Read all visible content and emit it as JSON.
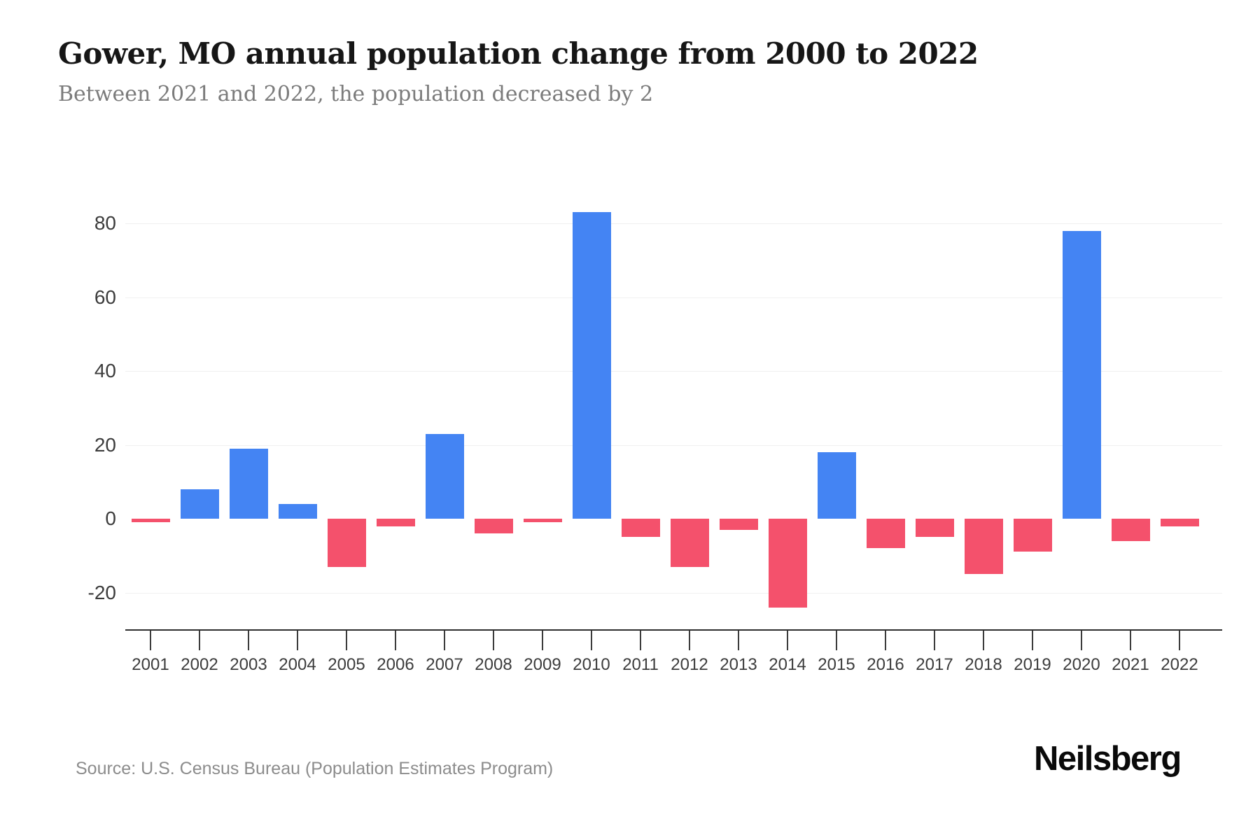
{
  "header": {
    "title": "Gower, MO annual population change from 2000 to 2022",
    "subtitle": "Between 2021 and 2022, the population decreased by 2"
  },
  "footer": {
    "source": "Source: U.S. Census Bureau (Population Estimates Program)",
    "brand": "Neilsberg"
  },
  "chart_data": {
    "type": "bar",
    "title": "Gower, MO annual population change from 2000 to 2022",
    "categories": [
      "2001",
      "2002",
      "2003",
      "2004",
      "2005",
      "2006",
      "2007",
      "2008",
      "2009",
      "2010",
      "2011",
      "2012",
      "2013",
      "2014",
      "2015",
      "2016",
      "2017",
      "2018",
      "2019",
      "2020",
      "2021",
      "2022"
    ],
    "values": [
      -1,
      8,
      19,
      4,
      -13,
      -2,
      23,
      -4,
      -1,
      83,
      -5,
      -13,
      -3,
      -24,
      18,
      -8,
      -5,
      -15,
      -9,
      78,
      -6,
      -2
    ],
    "xlabel": "",
    "ylabel": "",
    "y_ticks": [
      80,
      60,
      40,
      20,
      0,
      -20
    ],
    "y_tick_labels": [
      "80",
      "60",
      "40",
      "20",
      "0",
      "-20"
    ],
    "ylim": [
      -30,
      90
    ],
    "grid": true,
    "legend_position": "none",
    "colors": {
      "positive": "#4484F3",
      "negative": "#F4516C"
    }
  }
}
